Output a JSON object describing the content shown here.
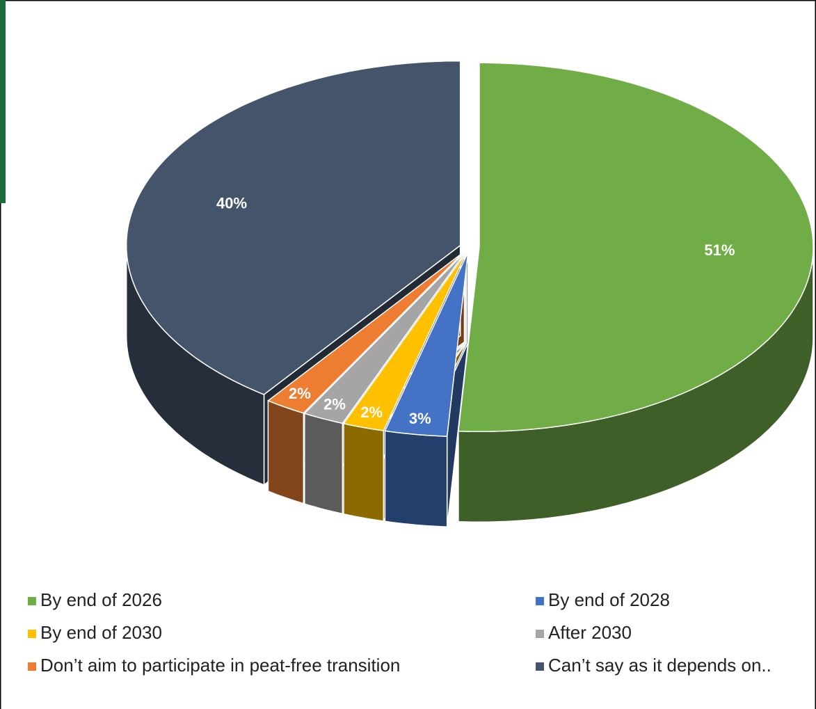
{
  "chart_data": {
    "type": "pie",
    "categories": [
      "By end of 2026",
      "By end of 2028",
      "By end of 2030",
      "After 2030",
      "Don’t aim to participate in peat-free transition",
      "Can’t say as it depends on.."
    ],
    "values": [
      51,
      3,
      2,
      2,
      2,
      40
    ],
    "value_labels": [
      "51%",
      "3%",
      "2%",
      "2%",
      "2%",
      "40%"
    ],
    "colors": [
      "#70ad47",
      "#4472c4",
      "#ffc000",
      "#a5a5a5",
      "#ed7d31",
      "#44546a"
    ],
    "legend": "bottom"
  }
}
